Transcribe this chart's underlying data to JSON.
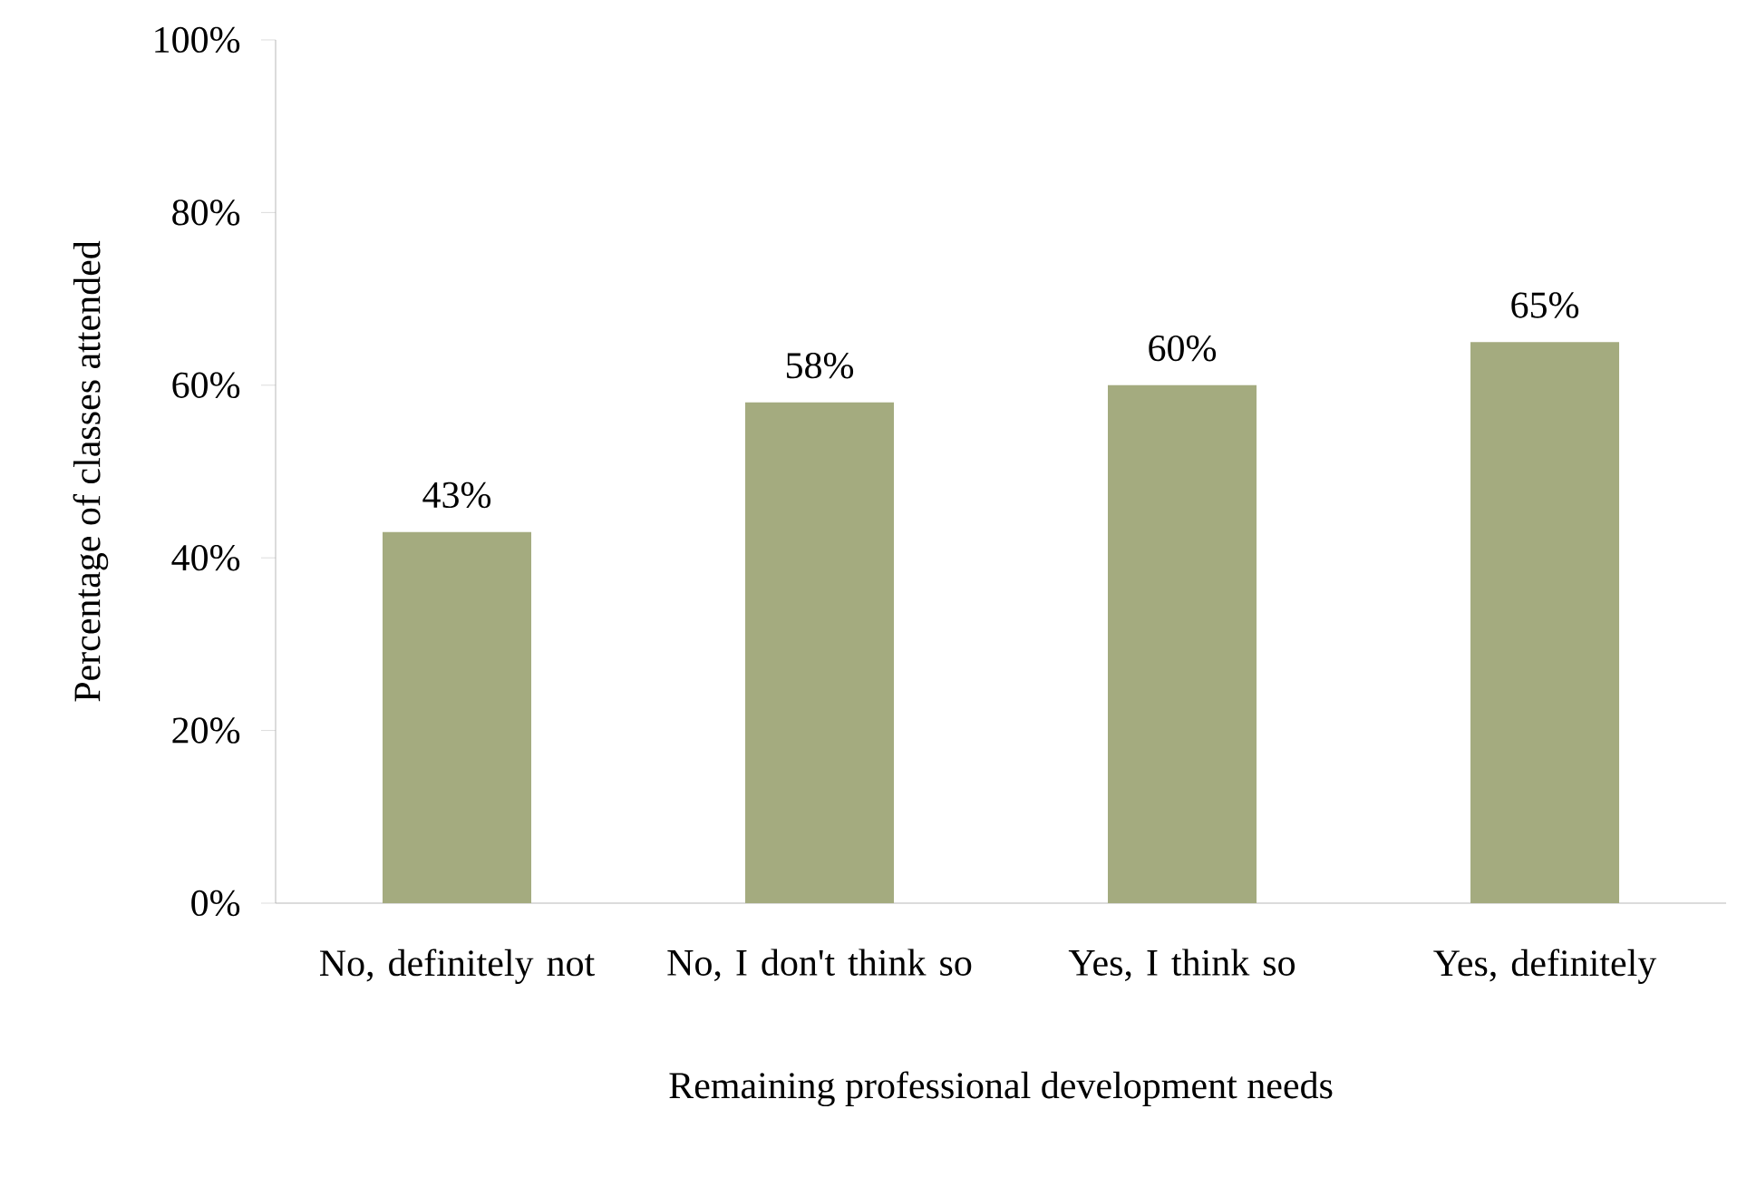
{
  "chart_data": {
    "type": "bar",
    "xlabel": "Remaining professional development needs",
    "ylabel": "Percentage of classes attended",
    "categories": [
      "No, definitely not",
      "No, I don't think so",
      "Yes, I think so",
      "Yes, definitely"
    ],
    "values": [
      43,
      58,
      60,
      65
    ],
    "value_labels": [
      "43%",
      "58%",
      "60%",
      "65%"
    ],
    "color": "#a4ab7f",
    "ylim": [
      0,
      100
    ],
    "yticks": [
      {
        "value": 0,
        "label": "0%"
      },
      {
        "value": 20,
        "label": "20%"
      },
      {
        "value": 40,
        "label": "40%"
      },
      {
        "value": 60,
        "label": "60%"
      },
      {
        "value": 80,
        "label": "80%"
      },
      {
        "value": 100,
        "label": "100%"
      }
    ]
  }
}
